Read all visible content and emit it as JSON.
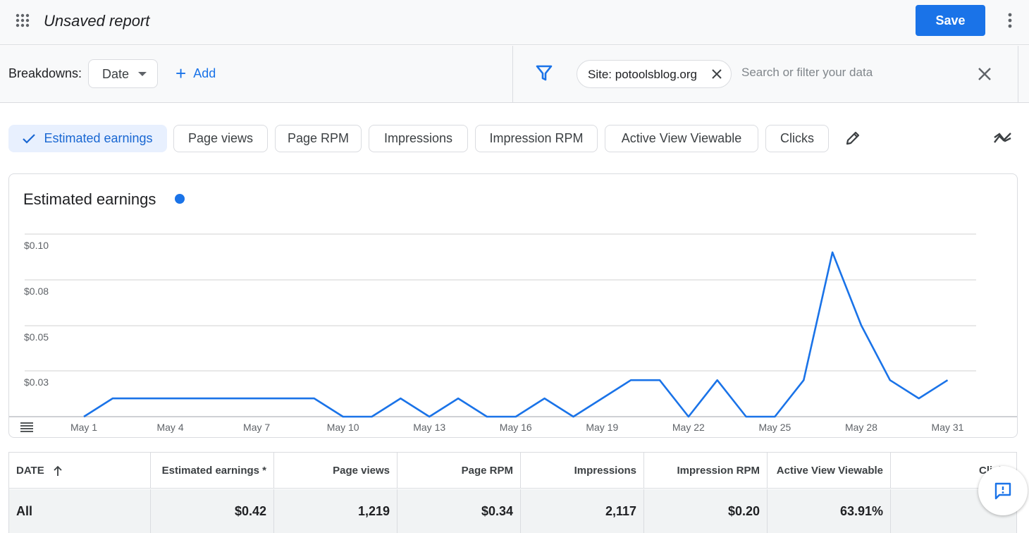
{
  "header": {
    "title": "Unsaved report",
    "save_label": "Save"
  },
  "filters": {
    "breakdowns_label": "Breakdowns:",
    "breakdown_value": "Date",
    "add_label": "Add",
    "site_chip": "Site: potoolsblog.org",
    "search_placeholder": "Search or filter your data"
  },
  "metrics": [
    {
      "label": "Estimated earnings",
      "active": true
    },
    {
      "label": "Page views",
      "active": false
    },
    {
      "label": "Page RPM",
      "active": false
    },
    {
      "label": "Impressions",
      "active": false
    },
    {
      "label": "Impression RPM",
      "active": false
    },
    {
      "label": "Active View Viewable",
      "active": false
    },
    {
      "label": "Clicks",
      "active": false
    }
  ],
  "colors": {
    "accent": "#1a73e8",
    "line": "#1a73e8",
    "grid": "#e0e0e0"
  },
  "chart_data": {
    "type": "line",
    "title": "Estimated earnings",
    "x": [
      "May 1",
      "May 2",
      "May 3",
      "May 4",
      "May 5",
      "May 6",
      "May 7",
      "May 8",
      "May 9",
      "May 10",
      "May 11",
      "May 12",
      "May 13",
      "May 14",
      "May 15",
      "May 16",
      "May 17",
      "May 18",
      "May 19",
      "May 20",
      "May 21",
      "May 22",
      "May 23",
      "May 24",
      "May 25",
      "May 26",
      "May 27",
      "May 28",
      "May 29",
      "May 30",
      "May 31"
    ],
    "x_tick_labels": [
      "May 1",
      "May 4",
      "May 7",
      "May 10",
      "May 13",
      "May 16",
      "May 19",
      "May 22",
      "May 25",
      "May 28",
      "May 31"
    ],
    "y_tick_labels": [
      "$0.10",
      "$0.08",
      "$0.05",
      "$0.03"
    ],
    "y_tick_values": [
      0.1,
      0.075,
      0.05,
      0.025
    ],
    "ylim": [
      0,
      0.1
    ],
    "series": [
      {
        "values": [
          0,
          0.01,
          0.01,
          0.01,
          0.01,
          0.01,
          0.01,
          0.01,
          0.01,
          0,
          0,
          0.01,
          0,
          0.01,
          0,
          0,
          0.01,
          0,
          0.01,
          0.02,
          0.02,
          0,
          0.02,
          0,
          0,
          0.02,
          0.09,
          0.05,
          0.02,
          0.01,
          0.02
        ]
      }
    ]
  },
  "table": {
    "columns": [
      "DATE",
      "Estimated earnings *",
      "Page views",
      "Page RPM",
      "Impressions",
      "Impression RPM",
      "Active View Viewable",
      "Clicks"
    ],
    "total_row": [
      "All",
      "$0.42",
      "1,219",
      "$0.34",
      "2,117",
      "$0.20",
      "63.91%",
      ""
    ]
  }
}
